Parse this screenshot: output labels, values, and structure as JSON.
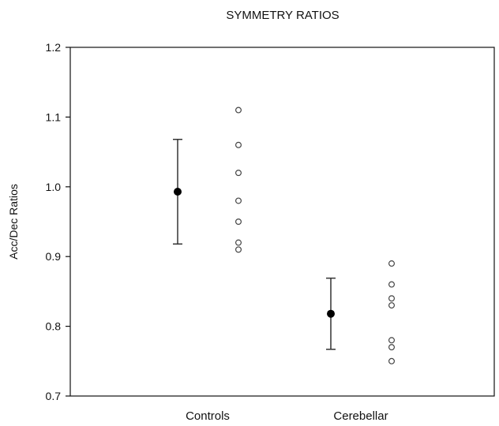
{
  "chart_data": {
    "type": "scatter",
    "title": "SYMMETRY RATIOS",
    "xlabel": "",
    "ylabel": "Acc/Dec Ratios",
    "categories": [
      "Controls",
      "Cerebellar"
    ],
    "ylim": [
      0.7,
      1.2
    ],
    "yticks": [
      "0.7",
      "0.8",
      "0.9",
      "1.0",
      "1.1",
      "1.2"
    ],
    "grid": false,
    "legend": "none",
    "summary": [
      {
        "category": "Controls",
        "mean": 0.993,
        "lower": 0.918,
        "upper": 1.068
      },
      {
        "category": "Cerebellar",
        "mean": 0.818,
        "lower": 0.767,
        "upper": 0.869
      }
    ],
    "individual": [
      {
        "category": "Controls",
        "values": [
          1.11,
          1.06,
          1.02,
          0.98,
          0.95,
          0.92,
          0.91
        ]
      },
      {
        "category": "Cerebellar",
        "values": [
          0.89,
          0.86,
          0.84,
          0.83,
          0.78,
          0.77,
          0.75
        ]
      }
    ],
    "colors": {
      "axis": "#111111",
      "mean_marker": "#000000",
      "error_bar": "#333333",
      "point_stroke": "#444444",
      "point_fill": "#ffffff"
    }
  }
}
